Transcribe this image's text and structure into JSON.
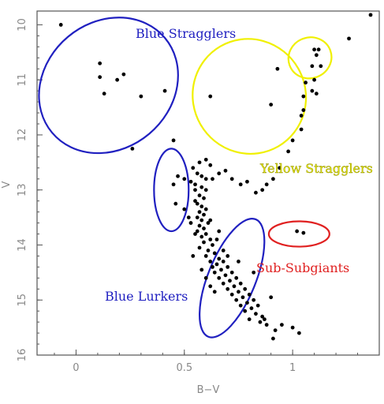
{
  "chart_data": {
    "type": "scatter",
    "title": "",
    "xlabel": "B−V",
    "ylabel": "V",
    "xlim": [
      -0.18,
      1.4
    ],
    "ylim": [
      16,
      9.75
    ],
    "y_inverted": true,
    "x_ticks": [
      "0",
      "0.5",
      "1"
    ],
    "x_tick_values": [
      0,
      0.5,
      1
    ],
    "y_ticks": [
      "10",
      "11",
      "12",
      "13",
      "14",
      "15",
      "16"
    ],
    "y_tick_values": [
      10,
      11,
      12,
      13,
      14,
      15,
      16
    ],
    "grid": false,
    "point_color": "#000000",
    "points": [
      [
        -0.07,
        10.0
      ],
      [
        0.11,
        10.7
      ],
      [
        0.11,
        10.95
      ],
      [
        0.13,
        11.25
      ],
      [
        0.19,
        11.0
      ],
      [
        0.22,
        10.9
      ],
      [
        0.3,
        11.3
      ],
      [
        0.41,
        11.2
      ],
      [
        0.26,
        12.25
      ],
      [
        0.45,
        12.1
      ],
      [
        1.36,
        9.82
      ],
      [
        1.26,
        10.25
      ],
      [
        1.1,
        10.45
      ],
      [
        1.12,
        10.45
      ],
      [
        1.11,
        10.55
      ],
      [
        1.09,
        10.75
      ],
      [
        1.13,
        10.75
      ],
      [
        1.1,
        11.0
      ],
      [
        1.06,
        11.05
      ],
      [
        1.09,
        11.2
      ],
      [
        1.11,
        11.25
      ],
      [
        1.05,
        11.3
      ],
      [
        1.05,
        11.55
      ],
      [
        1.04,
        11.65
      ],
      [
        1.04,
        11.9
      ],
      [
        0.93,
        10.8
      ],
      [
        0.9,
        11.45
      ],
      [
        0.62,
        11.3
      ],
      [
        1.0,
        12.1
      ],
      [
        0.98,
        12.3
      ],
      [
        0.94,
        12.6
      ],
      [
        0.91,
        12.8
      ],
      [
        0.88,
        12.9
      ],
      [
        0.86,
        13.0
      ],
      [
        0.83,
        13.05
      ],
      [
        0.79,
        12.85
      ],
      [
        0.76,
        12.9
      ],
      [
        0.72,
        12.8
      ],
      [
        0.69,
        12.65
      ],
      [
        0.66,
        12.7
      ],
      [
        0.62,
        12.55
      ],
      [
        0.63,
        12.8
      ],
      [
        1.02,
        13.75
      ],
      [
        1.05,
        13.78
      ],
      [
        0.45,
        12.9
      ],
      [
        0.47,
        12.75
      ],
      [
        0.46,
        13.25
      ],
      [
        0.5,
        13.35
      ],
      [
        0.5,
        12.8
      ],
      [
        0.54,
        12.6
      ],
      [
        0.57,
        12.5
      ],
      [
        0.6,
        12.45
      ],
      [
        0.56,
        12.7
      ],
      [
        0.58,
        12.75
      ],
      [
        0.6,
        12.8
      ],
      [
        0.55,
        12.9
      ],
      [
        0.58,
        12.95
      ],
      [
        0.6,
        13.0
      ],
      [
        0.57,
        13.1
      ],
      [
        0.59,
        13.15
      ],
      [
        0.55,
        13.2
      ],
      [
        0.56,
        13.25
      ],
      [
        0.58,
        13.3
      ],
      [
        0.6,
        13.35
      ],
      [
        0.57,
        13.4
      ],
      [
        0.59,
        13.45
      ],
      [
        0.56,
        13.5
      ],
      [
        0.58,
        13.55
      ],
      [
        0.61,
        13.6
      ],
      [
        0.57,
        13.65
      ],
      [
        0.59,
        13.7
      ],
      [
        0.56,
        13.75
      ],
      [
        0.6,
        13.8
      ],
      [
        0.58,
        13.85
      ],
      [
        0.62,
        13.9
      ],
      [
        0.59,
        13.95
      ],
      [
        0.63,
        14.0
      ],
      [
        0.57,
        14.05
      ],
      [
        0.61,
        14.1
      ],
      [
        0.64,
        14.15
      ],
      [
        0.6,
        14.2
      ],
      [
        0.66,
        14.25
      ],
      [
        0.62,
        14.3
      ],
      [
        0.65,
        14.35
      ],
      [
        0.68,
        14.3
      ],
      [
        0.63,
        14.4
      ],
      [
        0.67,
        14.45
      ],
      [
        0.7,
        14.4
      ],
      [
        0.64,
        14.5
      ],
      [
        0.69,
        14.55
      ],
      [
        0.72,
        14.5
      ],
      [
        0.66,
        14.6
      ],
      [
        0.71,
        14.65
      ],
      [
        0.74,
        14.6
      ],
      [
        0.68,
        14.7
      ],
      [
        0.73,
        14.75
      ],
      [
        0.76,
        14.7
      ],
      [
        0.7,
        14.8
      ],
      [
        0.75,
        14.85
      ],
      [
        0.78,
        14.8
      ],
      [
        0.72,
        14.9
      ],
      [
        0.77,
        14.95
      ],
      [
        0.8,
        14.9
      ],
      [
        0.74,
        15.0
      ],
      [
        0.79,
        15.05
      ],
      [
        0.82,
        15.0
      ],
      [
        0.76,
        15.1
      ],
      [
        0.81,
        15.15
      ],
      [
        0.84,
        15.1
      ],
      [
        0.78,
        15.2
      ],
      [
        0.83,
        15.25
      ],
      [
        0.86,
        15.3
      ],
      [
        0.8,
        15.35
      ],
      [
        0.85,
        15.4
      ],
      [
        0.88,
        15.45
      ],
      [
        0.9,
        14.95
      ],
      [
        0.92,
        15.55
      ],
      [
        0.95,
        15.45
      ],
      [
        1.0,
        15.5
      ],
      [
        1.03,
        15.6
      ],
      [
        0.91,
        15.7
      ],
      [
        0.87,
        15.35
      ],
      [
        0.82,
        14.5
      ],
      [
        0.75,
        14.3
      ],
      [
        0.65,
        13.9
      ],
      [
        0.68,
        14.1
      ],
      [
        0.62,
        13.55
      ],
      [
        0.66,
        13.75
      ],
      [
        0.7,
        14.2
      ],
      [
        0.53,
        12.85
      ],
      [
        0.55,
        13.0
      ],
      [
        0.53,
        13.6
      ],
      [
        0.55,
        13.8
      ],
      [
        0.52,
        13.5
      ],
      [
        0.54,
        14.2
      ],
      [
        0.58,
        14.45
      ],
      [
        0.6,
        14.6
      ],
      [
        0.62,
        14.75
      ],
      [
        0.64,
        14.85
      ]
    ],
    "annotations": [
      {
        "text": "Blue Stragglers",
        "color": "#1f1fc0"
      },
      {
        "text": "Yellow Stragglers",
        "color": "#e8e800"
      },
      {
        "text": "Blue Lurkers",
        "color": "#1f1fc0"
      },
      {
        "text": "Sub-Subgiants",
        "color": "#e02020"
      }
    ],
    "regions": [
      {
        "name": "blue-stragglers",
        "color": "#2020c0",
        "cx": 0.15,
        "cy": 11.1,
        "rx": 0.34,
        "ry": 1.15,
        "rotate_deg": 40
      },
      {
        "name": "yellow-stragglers",
        "color": "#f0f000",
        "cx": 0.8,
        "cy": 11.3,
        "rx": 0.26,
        "ry": 1.05,
        "rotate_deg": 30
      },
      {
        "name": "yellow-stragglers-small",
        "color": "#f0f000",
        "cx": 1.08,
        "cy": 10.6,
        "rx": 0.1,
        "ry": 0.37,
        "rotate_deg": 20
      },
      {
        "name": "blue-lurkers-upper",
        "color": "#2020c0",
        "cx": 0.44,
        "cy": 13.0,
        "rx": 0.08,
        "ry": 0.75,
        "rotate_deg": 0
      },
      {
        "name": "blue-lurkers-lower",
        "color": "#2020c0",
        "cx": 0.72,
        "cy": 14.6,
        "rx": 0.11,
        "ry": 1.15,
        "rotate_deg": -22
      },
      {
        "name": "sub-subgiants",
        "color": "#e02020",
        "cx": 1.03,
        "cy": 13.8,
        "rx": 0.14,
        "ry": 0.23,
        "rotate_deg": 0
      }
    ]
  }
}
